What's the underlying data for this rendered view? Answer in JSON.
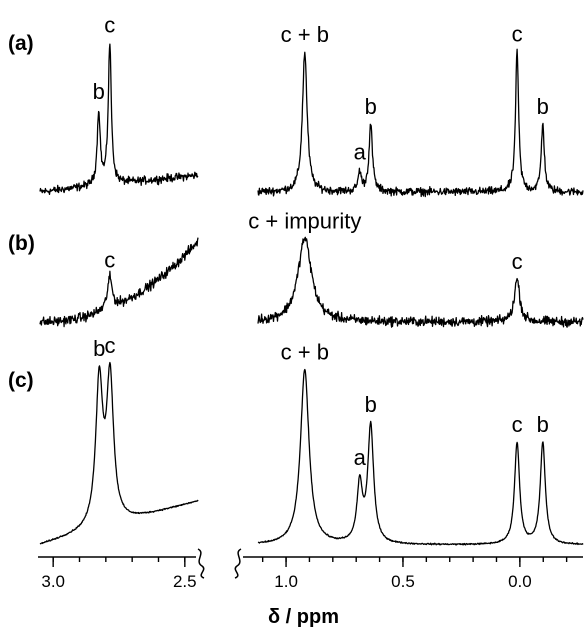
{
  "chart_data": {
    "type": "line",
    "description_free": true,
    "xlabel": "δ / ppm",
    "x_reversed": true,
    "axis_segments": [
      {
        "xlim": [
          3.05,
          2.45
        ],
        "ticks": [
          3.0,
          2.5
        ],
        "tick_labels": [
          "3.0",
          "2.5"
        ]
      },
      {
        "xlim": [
          1.12,
          -0.27
        ],
        "ticks": [
          1.0,
          0.5,
          0.0
        ],
        "tick_labels": [
          "1.0",
          "0.5",
          "0.0"
        ]
      }
    ],
    "panels": [
      {
        "label": "(a)",
        "noise": 0.028,
        "segments": [
          {
            "xlim": [
              3.05,
              2.45
            ],
            "baseline": 0.0,
            "slope": 0.12,
            "peaks": [
              {
                "x": 2.827,
                "h": 0.52,
                "w": 0.007,
                "label": "b"
              },
              {
                "x": 2.785,
                "h": 1.0,
                "w": 0.007,
                "label": "c"
              }
            ]
          },
          {
            "xlim": [
              1.12,
              -0.27
            ],
            "baseline": 0.0,
            "slope": 0.0,
            "peaks": [
              {
                "x": 0.92,
                "h": 1.0,
                "w": 0.012,
                "label": "c + b"
              },
              {
                "x": 0.685,
                "h": 0.14,
                "w": 0.008,
                "label": "a"
              },
              {
                "x": 0.638,
                "h": 0.48,
                "w": 0.009,
                "label": "b"
              },
              {
                "x": 0.012,
                "h": 1.0,
                "w": 0.008,
                "label": "c"
              },
              {
                "x": -0.098,
                "h": 0.48,
                "w": 0.008,
                "label": "b"
              }
            ]
          }
        ]
      },
      {
        "label": "(b)",
        "noise": 0.05,
        "segments": [
          {
            "xlim": [
              3.05,
              2.45
            ],
            "baseline": 0.0,
            "slope": 0.0,
            "curve_rise": 0.85,
            "peaks": [
              {
                "x": 2.785,
                "h": 0.33,
                "w": 0.011,
                "label": "c"
              }
            ]
          },
          {
            "xlim": [
              1.12,
              -0.27
            ],
            "baseline": 0.0,
            "slope": 0.0,
            "peaks": [
              {
                "x": 0.92,
                "h": 0.88,
                "w": 0.035,
                "label": "c + impurity"
              },
              {
                "x": 0.012,
                "h": 0.45,
                "w": 0.014,
                "label": "c"
              }
            ]
          }
        ]
      },
      {
        "label": "(c)",
        "noise": 0.004,
        "segments": [
          {
            "xlim": [
              3.05,
              2.45
            ],
            "baseline": 0.0,
            "slope": 0.25,
            "peaks": [
              {
                "x": 2.825,
                "h": 0.82,
                "w": 0.016,
                "label": "b"
              },
              {
                "x": 2.784,
                "h": 0.82,
                "w": 0.016,
                "label": "c"
              }
            ]
          },
          {
            "xlim": [
              1.12,
              -0.27
            ],
            "baseline": 0.0,
            "slope": 0.0,
            "peaks": [
              {
                "x": 0.92,
                "h": 1.0,
                "w": 0.022,
                "label": "c + b"
              },
              {
                "x": 0.685,
                "h": 0.33,
                "w": 0.014,
                "label": "a"
              },
              {
                "x": 0.638,
                "h": 0.67,
                "w": 0.015,
                "label": "b"
              },
              {
                "x": 0.012,
                "h": 0.58,
                "w": 0.013,
                "label": "c"
              },
              {
                "x": -0.098,
                "h": 0.58,
                "w": 0.013,
                "label": "b"
              }
            ]
          }
        ]
      }
    ]
  }
}
